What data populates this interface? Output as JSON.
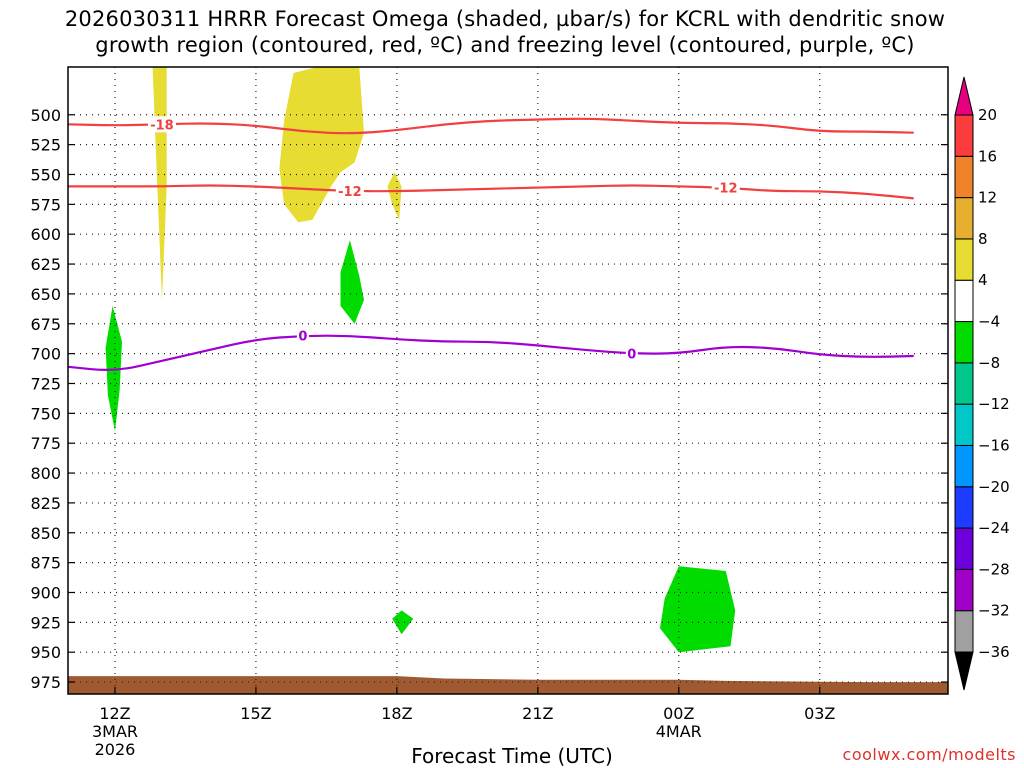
{
  "title": {
    "line1": "2026030311 HRRR Forecast Omega (shaded, µbar/s) for KCRL with dendritic snow",
    "line2": "growth region (contoured, red, ºC) and freezing level (contoured, purple, ºC)"
  },
  "xlabel": "Forecast Time (UTC)",
  "credit": "coolwx.com/modelts",
  "chart_data": {
    "type": "time-height contour",
    "x_hours_after_12Z_3MAR": [
      0,
      18
    ],
    "x_ticks": [
      {
        "hour": 0,
        "label": "12Z",
        "sub": [
          "3MAR",
          "2026"
        ]
      },
      {
        "hour": 3,
        "label": "15Z",
        "sub": []
      },
      {
        "hour": 6,
        "label": "18Z",
        "sub": []
      },
      {
        "hour": 9,
        "label": "21Z",
        "sub": []
      },
      {
        "hour": 12,
        "label": "00Z",
        "sub": [
          "4MAR"
        ]
      },
      {
        "hour": 15,
        "label": "03Z",
        "sub": []
      }
    ],
    "y_unit": "hPa",
    "y_range": [
      985,
      460
    ],
    "y_ticks": [
      500,
      525,
      550,
      575,
      600,
      625,
      650,
      675,
      700,
      725,
      750,
      775,
      800,
      825,
      850,
      875,
      900,
      925,
      950,
      975
    ],
    "colorbar": {
      "unit": "µbar/s",
      "levels": [
        -36,
        -32,
        -28,
        -24,
        -20,
        -16,
        -12,
        -8,
        -4,
        4,
        8,
        12,
        16,
        20
      ],
      "colors": [
        "#000000",
        "#a0a0a0",
        "#a000c8",
        "#6e00dc",
        "#1e3cff",
        "#0096ff",
        "#00c8c8",
        "#00c88c",
        "#00dc00",
        "#ffffff",
        "#e6dc32",
        "#e6af2d",
        "#f08228",
        "#fa3c3c",
        "#e6007d"
      ]
    },
    "dendritic_contours": [
      {
        "label": "-18",
        "color": "#f04040",
        "points": [
          [
            -1,
            508
          ],
          [
            0,
            509
          ],
          [
            1,
            508
          ],
          [
            2,
            507
          ],
          [
            3,
            509
          ],
          [
            4,
            514
          ],
          [
            5,
            516
          ],
          [
            6,
            513
          ],
          [
            7,
            508
          ],
          [
            8,
            505
          ],
          [
            9,
            504
          ],
          [
            10,
            503
          ],
          [
            11,
            505
          ],
          [
            12,
            507
          ],
          [
            13,
            507
          ],
          [
            14,
            509
          ],
          [
            15,
            514
          ],
          [
            16,
            514
          ],
          [
            17,
            515
          ]
        ]
      },
      {
        "label": "-12",
        "color": "#f04040",
        "points": [
          [
            -1,
            560
          ],
          [
            0,
            560
          ],
          [
            1,
            560
          ],
          [
            2,
            559
          ],
          [
            3,
            560
          ],
          [
            4,
            562
          ],
          [
            5,
            564
          ],
          [
            6,
            564
          ],
          [
            7,
            563
          ],
          [
            8,
            562
          ],
          [
            9,
            561
          ],
          [
            10,
            560
          ],
          [
            11,
            559
          ],
          [
            12,
            560
          ],
          [
            13,
            561
          ],
          [
            14,
            564
          ],
          [
            15,
            564
          ],
          [
            16,
            566
          ],
          [
            17,
            570
          ]
        ]
      }
    ],
    "freezing_level": {
      "label": "0",
      "color": "#a000d2",
      "points": [
        [
          -1,
          711
        ],
        [
          0,
          715
        ],
        [
          1,
          706
        ],
        [
          2,
          697
        ],
        [
          3,
          688
        ],
        [
          4,
          685
        ],
        [
          5,
          685
        ],
        [
          6,
          688
        ],
        [
          7,
          690
        ],
        [
          8,
          690
        ],
        [
          9,
          693
        ],
        [
          10,
          697
        ],
        [
          11,
          700
        ],
        [
          12,
          700
        ],
        [
          13,
          694
        ],
        [
          14,
          695
        ],
        [
          15,
          701
        ],
        [
          16,
          703
        ],
        [
          17,
          702
        ]
      ]
    },
    "omega_regions": [
      {
        "value": "4 to 8",
        "color": "#e6dc32",
        "points": [
          [
            0.8,
            460
          ],
          [
            1.1,
            460
          ],
          [
            1.1,
            560
          ],
          [
            1.0,
            655
          ],
          [
            0.9,
            560
          ]
        ]
      },
      {
        "value": "4 to 8",
        "color": "#e6dc32",
        "points": [
          [
            3.8,
            465
          ],
          [
            4.3,
            460
          ],
          [
            5.2,
            460
          ],
          [
            5.3,
            515
          ],
          [
            5.1,
            540
          ],
          [
            4.8,
            548
          ],
          [
            4.6,
            560
          ],
          [
            4.2,
            588
          ],
          [
            3.9,
            590
          ],
          [
            3.6,
            575
          ],
          [
            3.5,
            545
          ],
          [
            3.6,
            505
          ]
        ]
      },
      {
        "value": "4 to 8",
        "color": "#e6dc32",
        "points": [
          [
            5.95,
            548
          ],
          [
            6.1,
            560
          ],
          [
            6.05,
            588
          ],
          [
            5.9,
            575
          ],
          [
            5.8,
            560
          ]
        ]
      },
      {
        "value": "-8 to -4",
        "color": "#00dc00",
        "points": [
          [
            5.0,
            605
          ],
          [
            5.2,
            635
          ],
          [
            5.3,
            655
          ],
          [
            5.1,
            675
          ],
          [
            4.8,
            660
          ],
          [
            4.8,
            632
          ]
        ]
      },
      {
        "value": "-8 to -4",
        "color": "#00dc00",
        "points": [
          [
            -0.05,
            660
          ],
          [
            0.15,
            690
          ],
          [
            0.1,
            730
          ],
          [
            0.0,
            765
          ],
          [
            -0.15,
            735
          ],
          [
            -0.2,
            695
          ]
        ]
      },
      {
        "value": "-8 to -4",
        "color": "#00dc00",
        "points": [
          [
            6.1,
            915
          ],
          [
            6.35,
            922
          ],
          [
            6.1,
            935
          ],
          [
            5.9,
            922
          ]
        ]
      },
      {
        "value": "-8 to -4",
        "color": "#00dc00",
        "points": [
          [
            12.0,
            878
          ],
          [
            13.0,
            882
          ],
          [
            13.2,
            915
          ],
          [
            13.1,
            945
          ],
          [
            12.0,
            950
          ],
          [
            11.6,
            930
          ],
          [
            11.7,
            905
          ]
        ]
      }
    ],
    "terrain": {
      "color": "#a05a32",
      "points": [
        [
          -1,
          970
        ],
        [
          0,
          970
        ],
        [
          3,
          970
        ],
        [
          6,
          970
        ],
        [
          7,
          972
        ],
        [
          9,
          973
        ],
        [
          12,
          973
        ],
        [
          13,
          974
        ],
        [
          16,
          975
        ],
        [
          18,
          975
        ]
      ]
    }
  }
}
